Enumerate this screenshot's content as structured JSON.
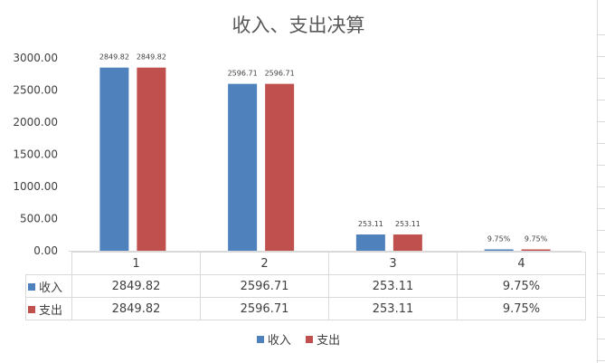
{
  "chart_data": {
    "type": "bar",
    "title": "收入、支出决算",
    "categories": [
      "1",
      "2",
      "3",
      "4"
    ],
    "series": [
      {
        "name": "收入",
        "color": "#4f81bd",
        "values": [
          2849.82,
          2596.71,
          253.11,
          9.75
        ],
        "labels": [
          "2849.82",
          "2596.71",
          "253.11",
          "9.75%"
        ]
      },
      {
        "name": "支出",
        "color": "#c0504d",
        "values": [
          2849.82,
          2596.71,
          253.11,
          9.75
        ],
        "labels": [
          "2849.82",
          "2596.71",
          "253.11",
          "9.75%"
        ]
      }
    ],
    "yticks": [
      "0.00",
      "500.00",
      "1000.00",
      "1500.00",
      "2000.00",
      "2500.00",
      "3000.00"
    ],
    "ylim": [
      0,
      3000
    ],
    "legend": "bottom",
    "data_table": true,
    "grid": false
  }
}
